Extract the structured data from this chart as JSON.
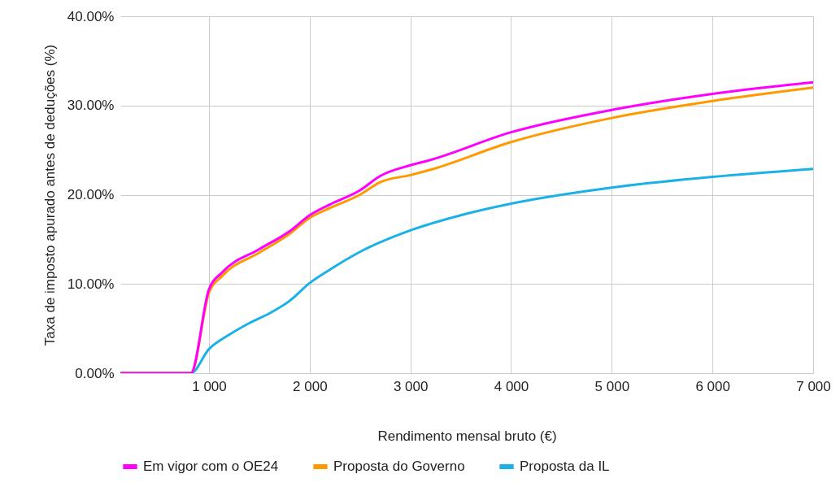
{
  "chart_data": {
    "type": "line",
    "xlabel": "Rendimento mensal bruto (€)",
    "ylabel": "Taxa de imposto apurado antes de deduções (%)",
    "xlim": [
      120,
      7000
    ],
    "xticks": [
      {
        "value": 1000,
        "label": "1 000"
      },
      {
        "value": 2000,
        "label": "2 000"
      },
      {
        "value": 3000,
        "label": "3 000"
      },
      {
        "value": 4000,
        "label": "4 000"
      },
      {
        "value": 5000,
        "label": "5 000"
      },
      {
        "value": 6000,
        "label": "6 000"
      },
      {
        "value": 7000,
        "label": "7 000"
      }
    ],
    "ylim": [
      0,
      40
    ],
    "yticks": [
      {
        "value": 0,
        "label": "0.00%"
      },
      {
        "value": 10,
        "label": "10.00%"
      },
      {
        "value": 20,
        "label": "20.00%"
      },
      {
        "value": 30,
        "label": "30.00%"
      },
      {
        "value": 40,
        "label": "40.00%"
      }
    ],
    "grid": true,
    "legend": "bottom",
    "line_style": "solid",
    "marker": "none",
    "series": [
      {
        "name": "Proposta da IL",
        "color": "#1ab0e8",
        "x": [
          120,
          820,
          1000,
          1200,
          1400,
          1600,
          1800,
          2000,
          2200,
          2500,
          3000,
          3500,
          4000,
          5000,
          6000,
          7000
        ],
        "values": [
          0,
          0,
          2.7,
          4.3,
          5.6,
          6.7,
          8.1,
          10.1,
          11.6,
          13.6,
          16.0,
          17.7,
          19.0,
          20.8,
          22.0,
          22.9
        ]
      },
      {
        "name": "Proposta do Governo",
        "color": "#ff9900",
        "x": [
          120,
          820,
          1000,
          1131,
          1500,
          1800,
          2000,
          2200,
          2500,
          2700,
          3000,
          3200,
          4000,
          5000,
          6000,
          7000
        ],
        "values": [
          0,
          0,
          9.0,
          10.9,
          13.5,
          15.6,
          17.4,
          18.5,
          20.0,
          21.4,
          22.2,
          22.8,
          25.9,
          28.6,
          30.5,
          32.0
        ]
      },
      {
        "name": "Em vigor com o OE24",
        "color": "#ff00ff",
        "x": [
          120,
          820,
          1000,
          1131,
          1500,
          1800,
          2000,
          2200,
          2500,
          2700,
          3000,
          3200,
          4000,
          5000,
          6000,
          7000
        ],
        "values": [
          0,
          0,
          9.4,
          11.3,
          13.9,
          15.9,
          17.7,
          18.9,
          20.5,
          22.1,
          23.3,
          23.9,
          27.0,
          29.5,
          31.3,
          32.6
        ]
      }
    ]
  }
}
